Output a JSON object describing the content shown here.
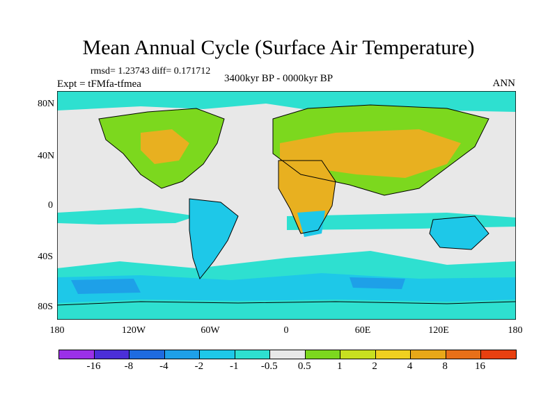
{
  "title": "Mean Annual Cycle (Surface Air Temperature)",
  "stats": "rmsd= 1.23743 diff= 0.171712",
  "period": "3400kyr BP - 0000kyr BP",
  "experiment": "Expt = tFMfa-tfmea",
  "season": "ANN",
  "lat_labels": [
    "80N",
    "40N",
    "0",
    "40S",
    "80S"
  ],
  "lon_labels": [
    "180",
    "120W",
    "60W",
    "0",
    "60E",
    "120E",
    "180"
  ],
  "colorbar": {
    "colors": [
      "#9b30e8",
      "#4b2fd9",
      "#1e6be0",
      "#1ea0e8",
      "#1ec8e8",
      "#2ee0d0",
      "#e8e8e8",
      "#7cd81e",
      "#c8e020",
      "#f0d020",
      "#e8a818",
      "#e87018",
      "#e84010"
    ],
    "labels": [
      "-16",
      "-8",
      "-4",
      "-2",
      "-1",
      "-0.5",
      "0.5",
      "1",
      "2",
      "4",
      "8",
      "16"
    ]
  },
  "palette": {
    "ocean_neutral": "#e8e8e8",
    "cool_light": "#2ee0d0",
    "cool_mid": "#1ec8e8",
    "cool_strong": "#1ea0e8",
    "warm_light": "#7cd81e",
    "warm_mid": "#c8e020",
    "warm_strong": "#e8b020"
  }
}
